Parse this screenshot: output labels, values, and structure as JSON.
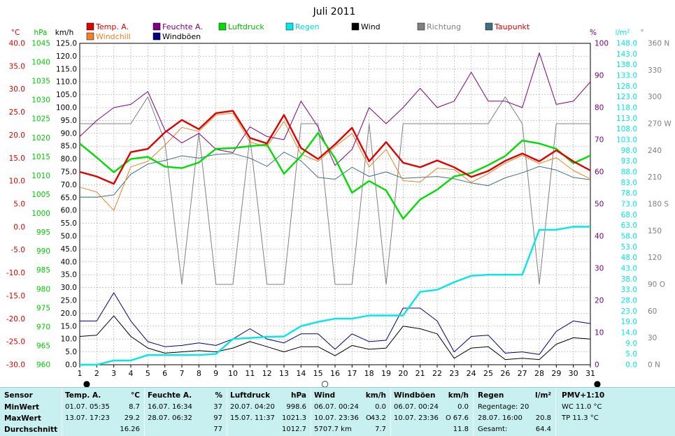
{
  "chart_data": {
    "type": "line",
    "title": "Juli 2011",
    "x": [
      1,
      2,
      3,
      4,
      5,
      6,
      7,
      8,
      9,
      10,
      11,
      12,
      13,
      14,
      15,
      16,
      17,
      18,
      19,
      20,
      21,
      22,
      23,
      24,
      25,
      26,
      27,
      28,
      29,
      30,
      31
    ],
    "axes": {
      "temp_c": {
        "label": "°C",
        "ticks": [
          "40.0",
          "35.0",
          "30.0",
          "25.0",
          "20.0",
          "15.0",
          "10.0",
          "5.0",
          "0.0",
          "-5.0",
          "-10.0",
          "-15.0",
          "-20.0",
          "-25.0",
          "-30.0"
        ],
        "color": "#e00000"
      },
      "pressure_hpa": {
        "label": "hPa",
        "ticks": [
          "1045",
          "1040",
          "1035",
          "1030",
          "1025",
          "1020",
          "1015",
          "1010",
          "1005",
          "1000",
          "995",
          "990",
          "985",
          "980",
          "975",
          "970",
          "965",
          "960"
        ],
        "color": "#00cc00"
      },
      "wind_kmh": {
        "label": "km/h",
        "ticks": [
          "125.0",
          "120.0",
          "115.0",
          "110.0",
          "105.0",
          "100.0",
          "95.0",
          "90.0",
          "85.0",
          "80.0",
          "75.0",
          "70.0",
          "65.0",
          "60.0",
          "55.0",
          "50.0",
          "45.0",
          "40.0",
          "35.0",
          "30.0",
          "25.0",
          "20.0",
          "15.0",
          "10.0",
          "5.0",
          "0.0"
        ],
        "color": "#000000"
      },
      "humidity_pct": {
        "label": "%",
        "ticks": [
          "100",
          "90",
          "80",
          "70",
          "60",
          "50",
          "40",
          "30",
          "20",
          "10",
          "0"
        ],
        "color": "#800080"
      },
      "rain_lm2": {
        "label": "l/m²",
        "ticks": [
          "148.0",
          "143.0",
          "138.0",
          "133.0",
          "128.0",
          "123.0",
          "118.0",
          "113.0",
          "108.0",
          "103.0",
          "98.0",
          "93.0",
          "88.0",
          "83.0",
          "78.0",
          "73.0",
          "68.0",
          "63.0",
          "58.0",
          "53.0",
          "48.0",
          "43.0",
          "38.0",
          "33.0",
          "28.0",
          "23.0",
          "19.0",
          "14.0",
          "9.0",
          "5.0",
          "0.0"
        ],
        "color": "#00e8e8"
      },
      "direction": {
        "label": "°",
        "ticks": [
          "360 N",
          "330",
          "300",
          "270 W",
          "240",
          "210",
          "180 S",
          "150",
          "120",
          "90 O",
          "60",
          "30",
          "0 N"
        ],
        "color": "#808080"
      }
    },
    "x_ticks": [
      "1",
      "2",
      "3",
      "4",
      "5",
      "6",
      "7",
      "8",
      "9",
      "10",
      "11",
      "12",
      "13",
      "14",
      "15",
      "16",
      "17",
      "18",
      "19",
      "20",
      "21",
      "22",
      "23",
      "24",
      "25",
      "26",
      "27",
      "28",
      "29",
      "30",
      "31"
    ],
    "series": [
      {
        "name": "Temp. A.",
        "color": "#e00000",
        "axis": "temp_c",
        "width": 2.4,
        "values": [
          12,
          11,
          9.4,
          16.3,
          17,
          20.6,
          23.3,
          21.3,
          24.8,
          25.3,
          19.4,
          18.2,
          24.4,
          17.2,
          14.8,
          18,
          21.6,
          14.3,
          18.5,
          14,
          13,
          14.5,
          13,
          10.9,
          12.2,
          14.4,
          16,
          14.3,
          16.7,
          14.3,
          12.3
        ]
      },
      {
        "name": "Windchill",
        "color": "#f08020",
        "axis": "temp_c",
        "width": 1,
        "values": [
          8.7,
          7.6,
          3.6,
          13.1,
          14.3,
          17.8,
          21.7,
          20.8,
          24.4,
          24.8,
          18.5,
          17.5,
          23,
          15.9,
          14.3,
          17.5,
          20.4,
          13.1,
          16.9,
          10.1,
          9.8,
          12.8,
          12.5,
          9.7,
          11.6,
          13.9,
          15.6,
          13.8,
          15.1,
          12.3,
          10.5
        ]
      },
      {
        "name": "Feuchte A.",
        "color": "#800080",
        "axis": "humidity_pct",
        "width": 1,
        "values": [
          71,
          76,
          80,
          81,
          85,
          73,
          69,
          72,
          67,
          66,
          74,
          71,
          70,
          82,
          74,
          62,
          67,
          80,
          75,
          80,
          86,
          80,
          82,
          91,
          82,
          82,
          80,
          97,
          81,
          82,
          88
        ]
      },
      {
        "name": "Luftdruck",
        "color": "#00dd00",
        "axis": "pressure_hpa",
        "width": 2.4,
        "values": [
          1018.5,
          1014.8,
          1010.9,
          1014.4,
          1015,
          1012.4,
          1012,
          1013.5,
          1017.1,
          1017.3,
          1017.8,
          1018.2,
          1010.5,
          1015.2,
          1021.3,
          1014.6,
          1005.5,
          1008.6,
          1006.1,
          998.6,
          1003.7,
          1006.3,
          1009.8,
          1010.7,
          1012.8,
          1015.2,
          1019.3,
          1018.5,
          1017.1,
          1013.3,
          1015.3
        ]
      },
      {
        "name": "Regen",
        "color": "#00e8e8",
        "axis": "rain_lm2",
        "width": 2.4,
        "values": [
          0,
          0,
          2,
          2,
          4.5,
          4.5,
          4.5,
          4.6,
          5,
          12,
          12.5,
          13,
          13.2,
          18,
          20,
          21.5,
          21.5,
          23,
          23,
          23,
          34,
          35,
          38.5,
          41.5,
          42,
          42,
          42,
          63,
          63,
          64.4,
          64.4
        ]
      },
      {
        "name": "Wind",
        "color": "#000000",
        "axis": "wind_kmh",
        "width": 1,
        "values": [
          11,
          11.5,
          19,
          11,
          6.5,
          4.5,
          5,
          5.5,
          5,
          6.5,
          9,
          7,
          5,
          7,
          7,
          3.5,
          7.5,
          6,
          6.5,
          15,
          14,
          12,
          2.5,
          6.5,
          7,
          2,
          2.5,
          2,
          8,
          10.5,
          10
        ]
      },
      {
        "name": "Richtung",
        "color": "#808080",
        "axis": "direction",
        "width": 1,
        "values": [
          270,
          270,
          270,
          270,
          300,
          250,
          90,
          260,
          90,
          90,
          255,
          90,
          90,
          270,
          270,
          90,
          90,
          270,
          90,
          270,
          270,
          270,
          270,
          270,
          270,
          300,
          270,
          90,
          270,
          270,
          270
        ]
      },
      {
        "name": "Taupunkt",
        "color": "#407080",
        "axis": "temp_c",
        "width": 1,
        "values": [
          6.5,
          6.5,
          7,
          11.5,
          13.7,
          14.5,
          15.5,
          15,
          15.8,
          16,
          15,
          13.2,
          16.3,
          14.4,
          10.8,
          10.4,
          13,
          11,
          12,
          10.6,
          10.8,
          11,
          10.5,
          9.6,
          9,
          10.7,
          11.8,
          13.2,
          12.4,
          10.8,
          10.3
        ]
      },
      {
        "name": "Windböen",
        "color": "#000080",
        "axis": "wind_kmh",
        "width": 1,
        "values": [
          17,
          17,
          28,
          17,
          9,
          7,
          7.5,
          8.5,
          7.5,
          10,
          14,
          10,
          8.5,
          12,
          12,
          6,
          12,
          9,
          9.5,
          22,
          22,
          17,
          5,
          11,
          11.5,
          4.5,
          5,
          4,
          13,
          17,
          16
        ]
      }
    ],
    "legend": [
      {
        "label": "Temp. A.",
        "color": "#e00000",
        "text_color": "#e00000"
      },
      {
        "label": "Feuchte A.",
        "color": "#800080",
        "text_color": "#800080"
      },
      {
        "label": "Luftdruck",
        "color": "#00dd00",
        "text_color": "#00bb00"
      },
      {
        "label": "Regen",
        "color": "#00e8e8",
        "text_color": "#00d8d8"
      },
      {
        "label": "Wind",
        "color": "#000000",
        "text_color": "#000000"
      },
      {
        "label": "Richtung",
        "color": "#808080",
        "text_color": "#808080"
      },
      {
        "label": "Taupunkt",
        "color": "#407080",
        "text_color": "#e00000"
      },
      {
        "label": "Windchill",
        "color": "#f08020",
        "text_color": "#f08020"
      },
      {
        "label": "Windböen",
        "color": "#000080",
        "text_color": "#000000"
      }
    ],
    "moon_markers": [
      {
        "day": 1,
        "symbol": "●"
      },
      {
        "day": 15,
        "symbol": "○"
      },
      {
        "day": 31,
        "symbol": "●"
      }
    ],
    "grid": true
  },
  "stats": {
    "sensor": {
      "header": "Sensor",
      "rows": [
        "MinWert",
        "MaxWert",
        "Durchschnitt"
      ]
    },
    "temp": {
      "header": "Temp. A.",
      "unit": "°C",
      "min_time": "01.07.  05:35",
      "min_val": "8.7",
      "max_time": "13.07.  17:23",
      "max_val": "29.2",
      "avg": "16.26"
    },
    "humidity": {
      "header": "Feuchte A.",
      "unit": "%",
      "min_time": "16.07.  16:34",
      "min_val": "37",
      "max_time": "28.07.  06:32",
      "max_val": "97",
      "avg": "77"
    },
    "pressure": {
      "header": "Luftdruck",
      "unit": "hPa",
      "min_time": "20.07.  04:20",
      "min_val": "998.6",
      "max_time": "15.07.  11:37",
      "max_val": "1021.3",
      "avg": "1012.7"
    },
    "wind": {
      "header": "Wind",
      "unit": "km/h",
      "min_time": "06.07.  00:24",
      "min_val": "0.0",
      "max_time": "10.07.  23:36",
      "max_dir": "O",
      "max_val": "43.2",
      "avg_label": "5707.7 km",
      "avg": "7.7"
    },
    "gusts": {
      "header": "Windböen",
      "unit": "km/h",
      "min_time": "06.07.  00:24",
      "min_val": "0.0",
      "max_time": "10.07.  23:36",
      "max_dir": "O",
      "max_val": "67.6",
      "avg": "11.8"
    },
    "rain": {
      "header": "Regen",
      "unit": "l/m²",
      "days_label": "Regentage: 20",
      "max_time": "28.07.  16:00",
      "max_val": "20.8",
      "total_label": "Gesamt:",
      "total": "64.4"
    },
    "pmv": {
      "header": "PMV+1:10",
      "wc": "WC 11.0 °C",
      "tp": "TP 11.3 °C"
    }
  }
}
